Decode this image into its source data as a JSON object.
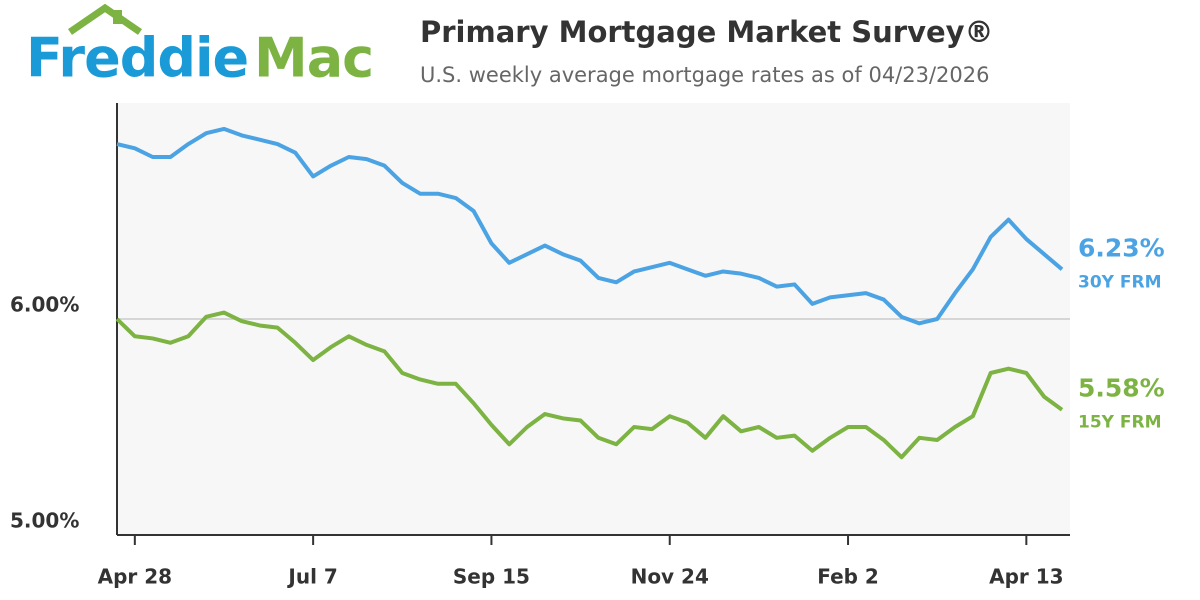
{
  "brand": {
    "word1": "Freddie",
    "word2": "Mac"
  },
  "chart_data": {
    "type": "line",
    "title": "Primary Mortgage Market Survey®",
    "subtitle": "U.S. weekly average mortgage rates as of 04/23/2026",
    "categories": [
      null,
      "Apr 28",
      null,
      null,
      null,
      null,
      null,
      null,
      null,
      null,
      null,
      "Jul 7",
      null,
      null,
      null,
      null,
      null,
      null,
      null,
      null,
      null,
      "Sep 15",
      null,
      null,
      null,
      null,
      null,
      null,
      null,
      null,
      null,
      "Nov 24",
      null,
      null,
      null,
      null,
      null,
      null,
      null,
      null,
      null,
      "Feb 2",
      null,
      null,
      null,
      null,
      null,
      null,
      null,
      null,
      null,
      "Apr 13",
      null,
      null
    ],
    "series": [
      {
        "name": "30Y FRM",
        "color": "#4ba3e3",
        "values": [
          6.81,
          6.79,
          6.75,
          6.75,
          6.81,
          6.86,
          6.88,
          6.85,
          6.83,
          6.81,
          6.77,
          6.66,
          6.71,
          6.75,
          6.74,
          6.71,
          6.63,
          6.58,
          6.58,
          6.56,
          6.5,
          6.35,
          6.26,
          6.3,
          6.34,
          6.3,
          6.27,
          6.19,
          6.17,
          6.22,
          6.24,
          6.26,
          6.23,
          6.2,
          6.22,
          6.21,
          6.19,
          6.15,
          6.16,
          6.07,
          6.1,
          6.11,
          6.12,
          6.09,
          6.01,
          5.98,
          6.0,
          6.12,
          6.23,
          6.38,
          6.46,
          6.37,
          6.3,
          6.23
        ],
        "value_labels": [
          null,
          null,
          null,
          null,
          null,
          null,
          null,
          null,
          null,
          null,
          null,
          null,
          null,
          null,
          null,
          null,
          null,
          null,
          null,
          null,
          null,
          null,
          null,
          null,
          null,
          null,
          null,
          null,
          null,
          null,
          null,
          null,
          null,
          null,
          null,
          null,
          null,
          null,
          null,
          null,
          null,
          null,
          null,
          null,
          null,
          null,
          null,
          null,
          null,
          null,
          null,
          null,
          null,
          "6.23%"
        ]
      },
      {
        "name": "15Y FRM",
        "color": "#7cb342",
        "values": [
          6.0,
          5.92,
          5.91,
          5.89,
          5.92,
          6.01,
          6.03,
          5.99,
          5.97,
          5.96,
          5.89,
          5.81,
          5.87,
          5.92,
          5.88,
          5.85,
          5.75,
          5.72,
          5.7,
          5.7,
          5.61,
          5.51,
          5.42,
          5.5,
          5.56,
          5.54,
          5.53,
          5.45,
          5.42,
          5.5,
          5.49,
          5.55,
          5.52,
          5.45,
          5.55,
          5.48,
          5.5,
          5.45,
          5.46,
          5.39,
          5.45,
          5.5,
          5.5,
          5.44,
          5.36,
          5.45,
          5.44,
          5.5,
          5.55,
          5.75,
          5.77,
          5.75,
          5.64,
          5.58
        ],
        "value_labels": [
          null,
          null,
          null,
          null,
          null,
          null,
          null,
          null,
          null,
          null,
          null,
          null,
          null,
          null,
          null,
          null,
          null,
          null,
          null,
          null,
          null,
          null,
          null,
          null,
          null,
          null,
          null,
          null,
          null,
          null,
          null,
          null,
          null,
          null,
          null,
          null,
          null,
          null,
          null,
          null,
          null,
          null,
          null,
          null,
          null,
          null,
          null,
          null,
          null,
          null,
          null,
          null,
          null,
          "5.58%"
        ]
      }
    ],
    "ylim": [
      5,
      7
    ],
    "yticks": [
      {
        "value": 5,
        "label": "5.00%"
      },
      {
        "value": 6,
        "label": "6.00%"
      }
    ],
    "grid": true
  }
}
